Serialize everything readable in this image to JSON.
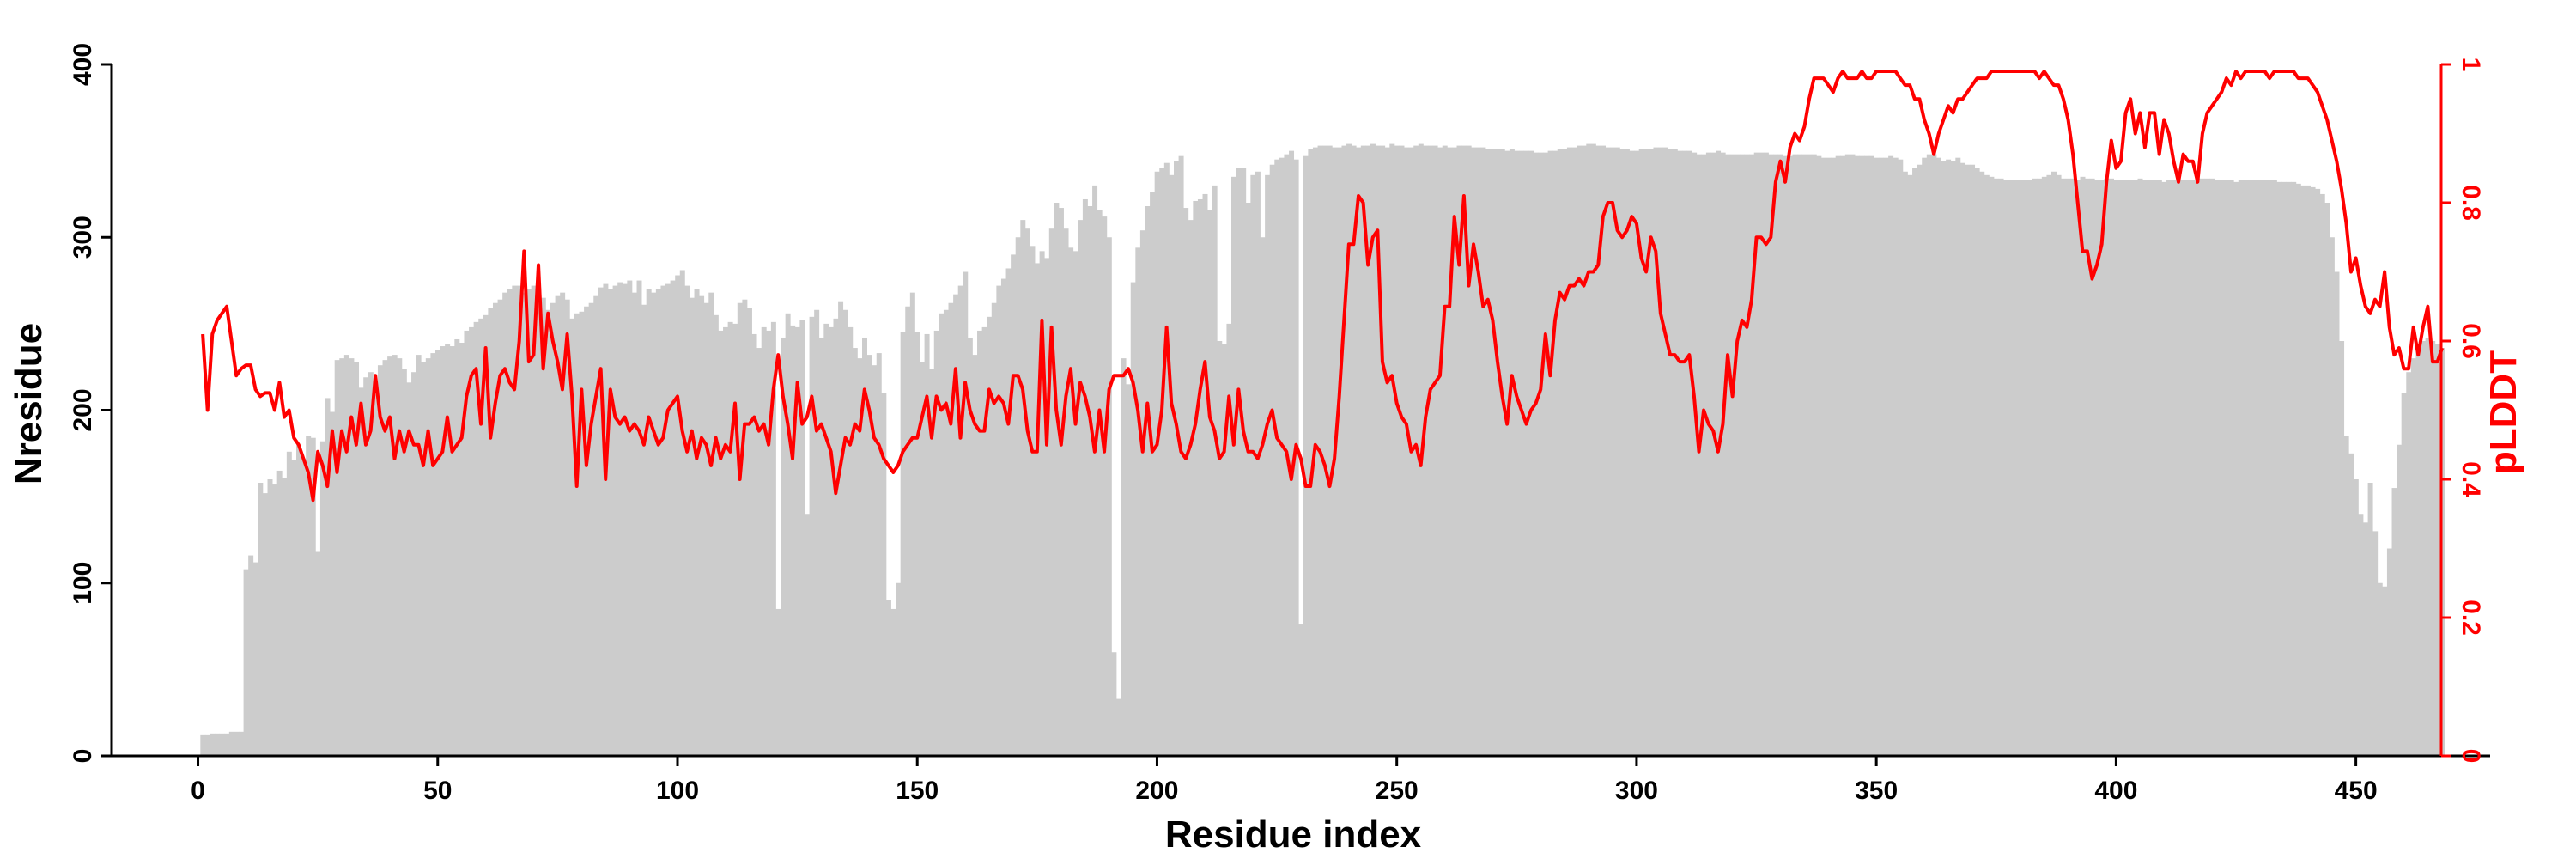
{
  "colors": {
    "bars": "#cccccc",
    "line": "#ff0000",
    "axis": "#000000",
    "axis_right": "#ff0000"
  },
  "chart_data": {
    "type": "bar+line",
    "xlabel": "Residue index",
    "ylabel_left": "Nresidue",
    "ylabel_right": "pLDDT",
    "xlim": [
      -18,
      478
    ],
    "ylim_left": [
      0,
      400
    ],
    "ylim_right": [
      0,
      1
    ],
    "xticks": [
      0,
      50,
      100,
      150,
      200,
      250,
      300,
      350,
      400,
      450
    ],
    "yticks_left": [
      0,
      100,
      200,
      300,
      400
    ],
    "yticks_right": [
      0,
      0.2,
      0.4,
      0.6,
      0.8,
      1
    ],
    "grid": false,
    "legend": "none",
    "bar_series": {
      "name": "",
      "values": [
        12,
        12,
        13,
        13,
        13,
        13,
        14,
        14,
        14,
        108,
        116,
        112,
        158,
        152,
        160,
        157,
        165,
        161,
        176,
        171,
        180,
        172,
        185,
        184,
        118,
        182,
        207,
        199,
        229,
        230,
        232,
        230,
        228,
        213,
        219,
        222,
        209,
        226,
        229,
        231,
        232,
        230,
        224,
        216,
        222,
        232,
        228,
        230,
        233,
        235,
        237,
        238,
        237,
        241,
        239,
        246,
        248,
        251,
        253,
        255,
        259,
        262,
        264,
        268,
        270,
        272,
        272,
        268,
        270,
        272,
        271,
        265,
        258,
        262,
        266,
        268,
        264,
        253,
        256,
        257,
        260,
        262,
        266,
        271,
        273,
        270,
        272,
        274,
        273,
        275,
        268,
        275,
        261,
        270,
        268,
        270,
        272,
        273,
        275,
        278,
        281,
        272,
        265,
        270,
        266,
        262,
        268,
        255,
        246,
        248,
        251,
        250,
        262,
        264,
        259,
        244,
        236,
        248,
        246,
        251,
        85,
        242,
        256,
        249,
        248,
        252,
        140,
        254,
        258,
        242,
        250,
        248,
        253,
        263,
        258,
        248,
        236,
        230,
        242,
        232,
        226,
        233,
        210,
        90,
        85,
        100,
        245,
        260,
        268,
        245,
        228,
        244,
        224,
        246,
        256,
        258,
        262,
        267,
        272,
        280,
        242,
        232,
        246,
        248,
        254,
        262,
        272,
        276,
        282,
        290,
        300,
        310,
        305,
        295,
        285,
        292,
        288,
        305,
        320,
        317,
        305,
        294,
        292,
        310,
        322,
        318,
        330,
        316,
        312,
        300,
        60,
        33,
        230,
        215,
        274,
        294,
        304,
        318,
        326,
        338,
        340,
        343,
        336,
        344,
        347,
        317,
        310,
        321,
        322,
        325,
        316,
        330,
        240,
        238,
        250,
        335,
        340,
        340,
        320,
        336,
        338,
        300,
        336,
        342,
        345,
        346,
        348,
        350,
        345,
        76,
        347,
        351,
        352,
        353,
        353,
        353,
        352,
        352,
        353,
        354,
        353,
        352,
        353,
        353,
        354,
        353,
        353,
        352,
        354,
        353,
        353,
        352,
        352,
        353,
        354,
        353,
        353,
        353,
        352,
        353,
        352,
        352,
        353,
        353,
        353,
        352,
        352,
        352,
        351,
        351,
        351,
        351,
        350,
        351,
        350,
        350,
        350,
        350,
        349,
        349,
        349,
        350,
        350,
        351,
        351,
        352,
        352,
        353,
        353,
        354,
        354,
        353,
        353,
        352,
        352,
        352,
        351,
        351,
        350,
        350,
        351,
        351,
        351,
        352,
        352,
        352,
        351,
        351,
        350,
        350,
        350,
        349,
        348,
        348,
        349,
        349,
        350,
        349,
        348,
        348,
        348,
        348,
        348,
        348,
        349,
        349,
        349,
        348,
        348,
        348,
        347,
        347,
        348,
        348,
        348,
        348,
        348,
        347,
        346,
        346,
        346,
        347,
        347,
        348,
        348,
        347,
        347,
        347,
        347,
        346,
        346,
        346,
        347,
        346,
        345,
        338,
        336,
        340,
        342,
        346,
        348,
        348,
        346,
        344,
        345,
        344,
        346,
        343,
        342,
        342,
        340,
        338,
        336,
        335,
        334,
        334,
        333,
        333,
        333,
        333,
        333,
        333,
        334,
        334,
        335,
        336,
        338,
        336,
        334,
        334,
        334,
        333,
        335,
        334,
        334,
        333,
        333,
        334,
        334,
        333,
        333,
        333,
        333,
        333,
        334,
        333,
        333,
        333,
        333,
        332,
        333,
        333,
        333,
        333,
        333,
        333,
        334,
        334,
        334,
        334,
        333,
        333,
        333,
        333,
        332,
        333,
        333,
        333,
        333,
        333,
        333,
        333,
        333,
        332,
        332,
        332,
        332,
        331,
        330,
        330,
        329,
        328,
        325,
        320,
        300,
        280,
        240,
        185,
        175,
        160,
        140,
        135,
        158,
        130,
        100,
        98,
        120,
        155,
        180,
        210,
        222,
        230,
        236,
        240,
        242,
        240,
        238,
        236
      ]
    },
    "line_series": {
      "name": "",
      "values": [
        0.61,
        0.5,
        0.61,
        0.63,
        0.64,
        0.65,
        0.6,
        0.55,
        0.56,
        0.565,
        0.565,
        0.53,
        0.52,
        0.525,
        0.525,
        0.5,
        0.54,
        0.49,
        0.5,
        0.46,
        0.45,
        0.43,
        0.41,
        0.37,
        0.44,
        0.42,
        0.39,
        0.47,
        0.41,
        0.47,
        0.44,
        0.49,
        0.45,
        0.51,
        0.45,
        0.47,
        0.55,
        0.49,
        0.47,
        0.49,
        0.43,
        0.47,
        0.44,
        0.47,
        0.45,
        0.45,
        0.42,
        0.47,
        0.42,
        0.43,
        0.44,
        0.49,
        0.44,
        0.45,
        0.46,
        0.52,
        0.55,
        0.56,
        0.48,
        0.59,
        0.46,
        0.51,
        0.55,
        0.56,
        0.54,
        0.53,
        0.6,
        0.73,
        0.57,
        0.58,
        0.71,
        0.56,
        0.64,
        0.6,
        0.57,
        0.53,
        0.61,
        0.52,
        0.39,
        0.53,
        0.42,
        0.48,
        0.52,
        0.56,
        0.4,
        0.53,
        0.49,
        0.48,
        0.49,
        0.47,
        0.48,
        0.47,
        0.45,
        0.49,
        0.47,
        0.45,
        0.46,
        0.5,
        0.51,
        0.52,
        0.47,
        0.44,
        0.47,
        0.43,
        0.46,
        0.45,
        0.42,
        0.46,
        0.43,
        0.45,
        0.44,
        0.51,
        0.4,
        0.48,
        0.48,
        0.49,
        0.47,
        0.48,
        0.45,
        0.53,
        0.58,
        0.52,
        0.48,
        0.43,
        0.54,
        0.48,
        0.49,
        0.52,
        0.47,
        0.48,
        0.46,
        0.44,
        0.38,
        0.42,
        0.46,
        0.45,
        0.48,
        0.47,
        0.53,
        0.5,
        0.46,
        0.45,
        0.43,
        0.42,
        0.41,
        0.42,
        0.44,
        0.45,
        0.46,
        0.46,
        0.49,
        0.52,
        0.46,
        0.52,
        0.5,
        0.51,
        0.48,
        0.56,
        0.46,
        0.54,
        0.5,
        0.48,
        0.47,
        0.47,
        0.53,
        0.51,
        0.52,
        0.51,
        0.48,
        0.55,
        0.55,
        0.53,
        0.47,
        0.44,
        0.44,
        0.63,
        0.45,
        0.62,
        0.5,
        0.45,
        0.52,
        0.56,
        0.48,
        0.54,
        0.52,
        0.49,
        0.44,
        0.5,
        0.44,
        0.53,
        0.55,
        0.55,
        0.55,
        0.56,
        0.54,
        0.5,
        0.44,
        0.51,
        0.44,
        0.45,
        0.5,
        0.62,
        0.51,
        0.48,
        0.44,
        0.43,
        0.45,
        0.48,
        0.53,
        0.57,
        0.49,
        0.47,
        0.43,
        0.44,
        0.52,
        0.45,
        0.53,
        0.47,
        0.44,
        0.44,
        0.43,
        0.45,
        0.48,
        0.5,
        0.46,
        0.45,
        0.44,
        0.4,
        0.45,
        0.43,
        0.39,
        0.39,
        0.45,
        0.44,
        0.42,
        0.39,
        0.43,
        0.52,
        0.63,
        0.74,
        0.74,
        0.81,
        0.8,
        0.71,
        0.75,
        0.76,
        0.57,
        0.54,
        0.55,
        0.51,
        0.49,
        0.48,
        0.44,
        0.45,
        0.42,
        0.49,
        0.53,
        0.54,
        0.55,
        0.65,
        0.65,
        0.78,
        0.71,
        0.81,
        0.68,
        0.74,
        0.7,
        0.65,
        0.66,
        0.63,
        0.57,
        0.52,
        0.48,
        0.55,
        0.52,
        0.5,
        0.48,
        0.5,
        0.51,
        0.53,
        0.61,
        0.55,
        0.63,
        0.67,
        0.66,
        0.68,
        0.68,
        0.69,
        0.68,
        0.7,
        0.7,
        0.71,
        0.78,
        0.8,
        0.8,
        0.76,
        0.75,
        0.76,
        0.78,
        0.77,
        0.72,
        0.7,
        0.75,
        0.73,
        0.64,
        0.61,
        0.58,
        0.58,
        0.57,
        0.57,
        0.58,
        0.52,
        0.44,
        0.5,
        0.48,
        0.47,
        0.44,
        0.48,
        0.58,
        0.52,
        0.6,
        0.63,
        0.62,
        0.66,
        0.75,
        0.75,
        0.74,
        0.75,
        0.83,
        0.86,
        0.83,
        0.88,
        0.9,
        0.89,
        0.91,
        0.95,
        0.98,
        0.98,
        0.98,
        0.97,
        0.96,
        0.98,
        0.99,
        0.98,
        0.98,
        0.98,
        0.99,
        0.98,
        0.98,
        0.99,
        0.99,
        0.99,
        0.99,
        0.99,
        0.98,
        0.97,
        0.97,
        0.95,
        0.95,
        0.92,
        0.9,
        0.87,
        0.9,
        0.92,
        0.94,
        0.93,
        0.95,
        0.95,
        0.96,
        0.97,
        0.98,
        0.98,
        0.98,
        0.99,
        0.99,
        0.99,
        0.99,
        0.99,
        0.99,
        0.99,
        0.99,
        0.99,
        0.99,
        0.98,
        0.99,
        0.98,
        0.97,
        0.97,
        0.95,
        0.92,
        0.87,
        0.8,
        0.73,
        0.73,
        0.69,
        0.71,
        0.74,
        0.83,
        0.89,
        0.85,
        0.86,
        0.93,
        0.95,
        0.9,
        0.93,
        0.88,
        0.93,
        0.93,
        0.87,
        0.92,
        0.9,
        0.86,
        0.83,
        0.87,
        0.86,
        0.86,
        0.83,
        0.9,
        0.93,
        0.94,
        0.95,
        0.96,
        0.98,
        0.97,
        0.99,
        0.98,
        0.99,
        0.99,
        0.99,
        0.99,
        0.99,
        0.98,
        0.99,
        0.99,
        0.99,
        0.99,
        0.99,
        0.98,
        0.98,
        0.98,
        0.97,
        0.96,
        0.94,
        0.92,
        0.89,
        0.86,
        0.82,
        0.77,
        0.7,
        0.72,
        0.68,
        0.65,
        0.64,
        0.66,
        0.65,
        0.7,
        0.62,
        0.58,
        0.59,
        0.56,
        0.56,
        0.62,
        0.58,
        0.62,
        0.65,
        0.57,
        0.57,
        0.59
      ]
    }
  }
}
